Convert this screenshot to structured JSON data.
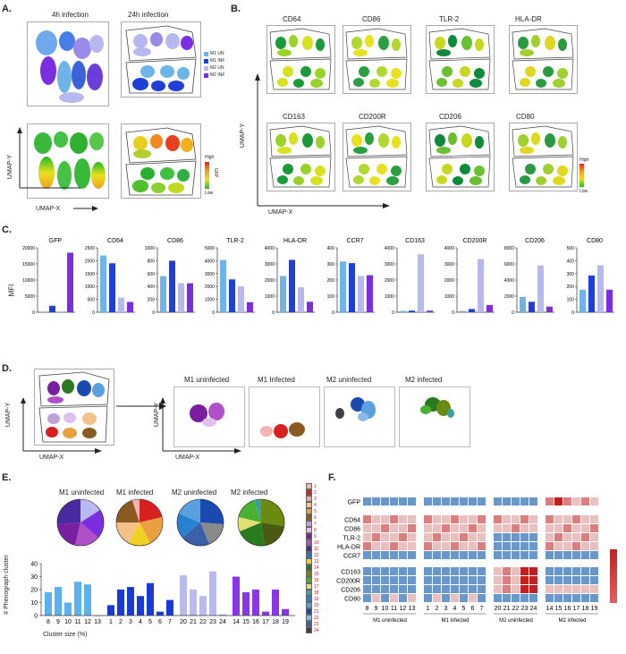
{
  "panels": {
    "a": "A.",
    "b": "B.",
    "c": "C.",
    "d": "D.",
    "e": "E.",
    "f": "F."
  },
  "panel_a": {
    "title_4h": "4h infection",
    "title_24h": "24h infection",
    "legend": [
      {
        "label": "M1 UN",
        "color": "#6fb4e8"
      },
      {
        "label": "M1 INF",
        "color": "#1f3fd6"
      },
      {
        "label": "M2 UN",
        "color": "#b7b9ee"
      },
      {
        "label": "M2 INF",
        "color": "#7b2ee0"
      }
    ],
    "gfp_high": "High",
    "gfp_low": "Low",
    "gfp_label": "GFP",
    "umap_y": "UMAP-Y",
    "umap_x": "UMAP-X"
  },
  "panel_b": {
    "markers": [
      "CD64",
      "CD86",
      "TLR-2",
      "HLA-DR",
      "CD163",
      "CD200R",
      "CD206",
      "CD80"
    ],
    "high": "High",
    "low": "Low",
    "umap_y": "UMAP-Y",
    "umap_x": "UMAP-X"
  },
  "panel_c": {
    "ylabel": "MFI",
    "group_colors": [
      "#6fb4e8",
      "#1f3fd6",
      "#b7b9ee",
      "#7b2ee0"
    ],
    "charts": [
      {
        "title": "GFP",
        "ticks": [
          "20000",
          "15000",
          "10000",
          "5000",
          "0"
        ],
        "max": 20000,
        "values": [
          200,
          2000,
          300,
          18500
        ]
      },
      {
        "title": "CD64",
        "ticks": [
          "2500",
          "2000",
          "1500",
          "1000",
          "500",
          "0"
        ],
        "max": 2500,
        "values": [
          2200,
          1900,
          570,
          400
        ]
      },
      {
        "title": "CD86",
        "ticks": [
          "1000",
          "800",
          "600",
          "400",
          "200",
          "0"
        ],
        "max": 1000,
        "values": [
          560,
          800,
          450,
          450
        ]
      },
      {
        "title": "TLR-2",
        "ticks": [
          "5000",
          "4000",
          "3000",
          "2000",
          "1000",
          "0"
        ],
        "max": 5000,
        "values": [
          4050,
          2550,
          2000,
          780
        ]
      },
      {
        "title": "HLA-DR",
        "ticks": [
          "4000",
          "3000",
          "2000",
          "1000",
          "0"
        ],
        "max": 4000,
        "values": [
          2250,
          3250,
          1550,
          650
        ]
      },
      {
        "title": "CCR7",
        "ticks": [
          "400",
          "300",
          "200",
          "100",
          "0"
        ],
        "max": 400,
        "values": [
          315,
          305,
          225,
          230
        ]
      },
      {
        "title": "CD163",
        "ticks": [
          "4000",
          "3000",
          "2000",
          "1000",
          "0"
        ],
        "max": 4000,
        "values": [
          80,
          100,
          3600,
          100
        ]
      },
      {
        "title": "CD200R",
        "ticks": [
          "4000",
          "3000",
          "2000",
          "1000",
          "0"
        ],
        "max": 4000,
        "values": [
          80,
          200,
          3300,
          450
        ]
      },
      {
        "title": "CD206",
        "ticks": [
          "8000",
          "6000",
          "4000",
          "2000",
          "0"
        ],
        "max": 8000,
        "values": [
          1900,
          1300,
          5800,
          700
        ]
      },
      {
        "title": "CD80",
        "ticks": [
          "500",
          "400",
          "300",
          "200",
          "100",
          "0"
        ],
        "max": 500,
        "values": [
          175,
          285,
          365,
          175
        ]
      }
    ]
  },
  "panel_d": {
    "titles": [
      "M1 uninfected",
      "M1 Infected",
      "M2 uninfected",
      "M2 infected"
    ],
    "umap_y": "UMAP-Y",
    "umap_x": "UMAP-X"
  },
  "panel_e": {
    "pie_titles": [
      "M1 uninfected",
      "M1 infected",
      "M2 uninfected",
      "M2 infected"
    ],
    "ylabel": "# Phenograph cluster",
    "xlabel": "Cluster size (%)",
    "yticks": [
      "40",
      "30",
      "20",
      "10",
      "0"
    ],
    "chart_data": {
      "type": "bar",
      "ylim": [
        0,
        40
      ],
      "xlabel": "Cluster size (%)",
      "ylabel": "# Phenograph cluster",
      "groups": [
        {
          "name": "M1 uninfected",
          "color": "#5ab1ee",
          "categories": [
            "8",
            "9",
            "10",
            "11",
            "12",
            "13"
          ],
          "values": [
            18,
            22,
            10,
            26,
            24,
            0
          ]
        },
        {
          "name": "M1 infected",
          "color": "#1a3ad8",
          "categories": [
            "1",
            "2",
            "3",
            "4",
            "5",
            "6",
            "7"
          ],
          "values": [
            8,
            20,
            22,
            15,
            25,
            3,
            12
          ]
        },
        {
          "name": "M2 uninfected",
          "color": "#b8baf0",
          "categories": [
            "20",
            "21",
            "22",
            "23",
            "24"
          ],
          "values": [
            31,
            20,
            15,
            34,
            1
          ]
        },
        {
          "name": "M2 infected",
          "color": "#8a35ea",
          "categories": [
            "14",
            "15",
            "16",
            "17",
            "18",
            "19"
          ],
          "values": [
            30,
            18,
            20,
            3,
            20,
            5
          ]
        }
      ]
    },
    "legend": [
      {
        "label": "1",
        "color": "#f2b3b3"
      },
      {
        "label": "2",
        "color": "#d92020"
      },
      {
        "label": "3",
        "color": "#f2a8a8"
      },
      {
        "label": "4",
        "color": "#f5c08a"
      },
      {
        "label": "5",
        "color": "#e8a040"
      },
      {
        "label": "6",
        "color": "#8a5a20"
      },
      {
        "label": "7",
        "color": "#c0a0d8"
      },
      {
        "label": "8",
        "color": "#e0c0f0"
      },
      {
        "label": "9",
        "color": "#7a1fa0"
      },
      {
        "label": "10",
        "color": "#b050c8"
      },
      {
        "label": "11",
        "color": "#4a2aa0"
      },
      {
        "label": "12",
        "color": "#2a6fd0"
      },
      {
        "label": "13",
        "color": "#f0d020"
      },
      {
        "label": "14",
        "color": "#2a7a20"
      },
      {
        "label": "15",
        "color": "#6a8a10"
      },
      {
        "label": "16",
        "color": "#4ab030"
      },
      {
        "label": "17",
        "color": "#e0e070"
      },
      {
        "label": "18",
        "color": "#3aa0a0"
      },
      {
        "label": "19",
        "color": "#2a80d0"
      },
      {
        "label": "20",
        "color": "#5aa0e0"
      },
      {
        "label": "21",
        "color": "#1a4ab0"
      },
      {
        "label": "22",
        "color": "#8ab8e8"
      },
      {
        "label": "23",
        "color": "#3a60a8"
      },
      {
        "label": "24",
        "color": "#404040"
      }
    ]
  },
  "panel_f": {
    "rows_top": [
      "GFP"
    ],
    "rows_mid": [
      "CD64",
      "CD86",
      "TLR-2",
      "HLA-DR",
      "CCR7"
    ],
    "rows_bot": [
      "CD163",
      "CD200R",
      "CD206",
      "CD80"
    ],
    "groups": [
      {
        "name": "M1 uninfected",
        "cols": [
          "8",
          "9",
          "10",
          "11",
          "12",
          "13"
        ]
      },
      {
        "name": "M1 infected",
        "cols": [
          "1",
          "2",
          "3",
          "4",
          "5",
          "6",
          "7"
        ]
      },
      {
        "name": "M2 uninfected",
        "cols": [
          "20",
          "21",
          "22",
          "23",
          "24"
        ]
      },
      {
        "name": "M2 infected",
        "cols": [
          "14",
          "15",
          "16",
          "17",
          "18",
          "19"
        ]
      }
    ]
  }
}
